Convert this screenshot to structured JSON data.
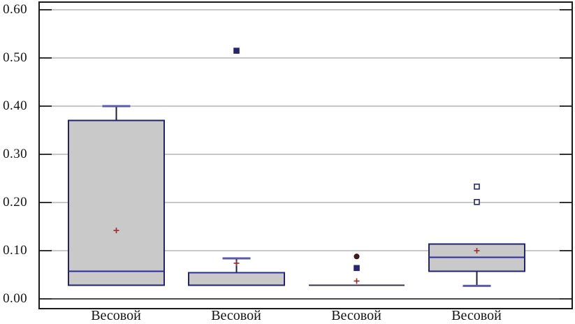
{
  "figure": {
    "background": "#ffffff"
  },
  "chart_data": {
    "type": "box",
    "categories": [
      "Весовой",
      "Весовой",
      "Весовой",
      "Весовой"
    ],
    "ylim": [
      0,
      0.6
    ],
    "ytick_step": 0.1,
    "ytick_labels": [
      "0.60",
      "0.50",
      "0.40",
      "0.30",
      "0.20",
      "0.10",
      "0.00"
    ],
    "grid": "horizontal",
    "legend": "none",
    "boxes": [
      {
        "q1": 0.028,
        "median": 0.057,
        "q3": 0.37,
        "whisker_low": null,
        "whisker_high": 0.4,
        "mean": 0.142,
        "outliers": []
      },
      {
        "q1": 0.028,
        "median": 0.054,
        "q3": 0.054,
        "whisker_low": null,
        "whisker_high": 0.084,
        "mean": 0.074,
        "outliers": [
          {
            "value": 0.515,
            "shape": "square-filled"
          }
        ]
      },
      {
        "q1": 0.028,
        "median": 0.028,
        "q3": 0.028,
        "whisker_low": null,
        "whisker_high": null,
        "mean": 0.037,
        "outliers": [
          {
            "value": 0.088,
            "shape": "circle-filled"
          },
          {
            "value": 0.064,
            "shape": "square-filled"
          }
        ]
      },
      {
        "q1": 0.057,
        "median": 0.086,
        "q3": 0.114,
        "whisker_low": 0.027,
        "whisker_high": null,
        "mean": 0.1,
        "outliers": [
          {
            "value": 0.233,
            "shape": "square-open"
          },
          {
            "value": 0.201,
            "shape": "square-open"
          }
        ]
      }
    ],
    "colors": {
      "box_fill": "#c9c9c9",
      "box_border": "#23236b",
      "median": "#2a2a9e",
      "whisker_line": "#1e1e3e",
      "whisker_cap": "#5a5aa8",
      "mean_marker": "#9e2f2f",
      "outlier_navy": "#26266a",
      "outlier_dark_red": "#441c20",
      "gridline": "#8f8f8f",
      "baseline": "#4b4b4b",
      "frame": "#1a1a1a",
      "tick": "#333333"
    }
  }
}
